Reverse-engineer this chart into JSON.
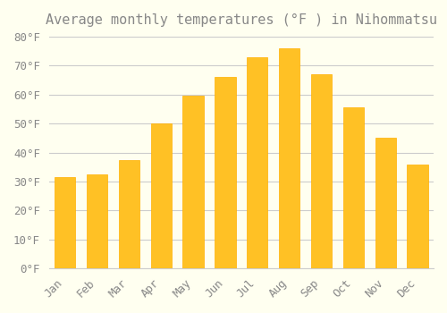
{
  "title": "Average monthly temperatures (°F ) in Nihommatsu",
  "months": [
    "Jan",
    "Feb",
    "Mar",
    "Apr",
    "May",
    "Jun",
    "Jul",
    "Aug",
    "Sep",
    "Oct",
    "Nov",
    "Dec"
  ],
  "values": [
    31.5,
    32.5,
    37.5,
    50.0,
    59.5,
    66.0,
    73.0,
    76.0,
    67.0,
    55.5,
    45.0,
    36.0
  ],
  "bar_color_top": "#FFC125",
  "bar_color_bottom": "#FFB000",
  "background_color": "#FFFFF0",
  "grid_color": "#CCCCCC",
  "text_color": "#888888",
  "ylim": [
    0,
    80
  ],
  "yticks": [
    0,
    10,
    20,
    30,
    40,
    50,
    60,
    70,
    80
  ],
  "title_fontsize": 11,
  "tick_fontsize": 9,
  "font_family": "monospace"
}
